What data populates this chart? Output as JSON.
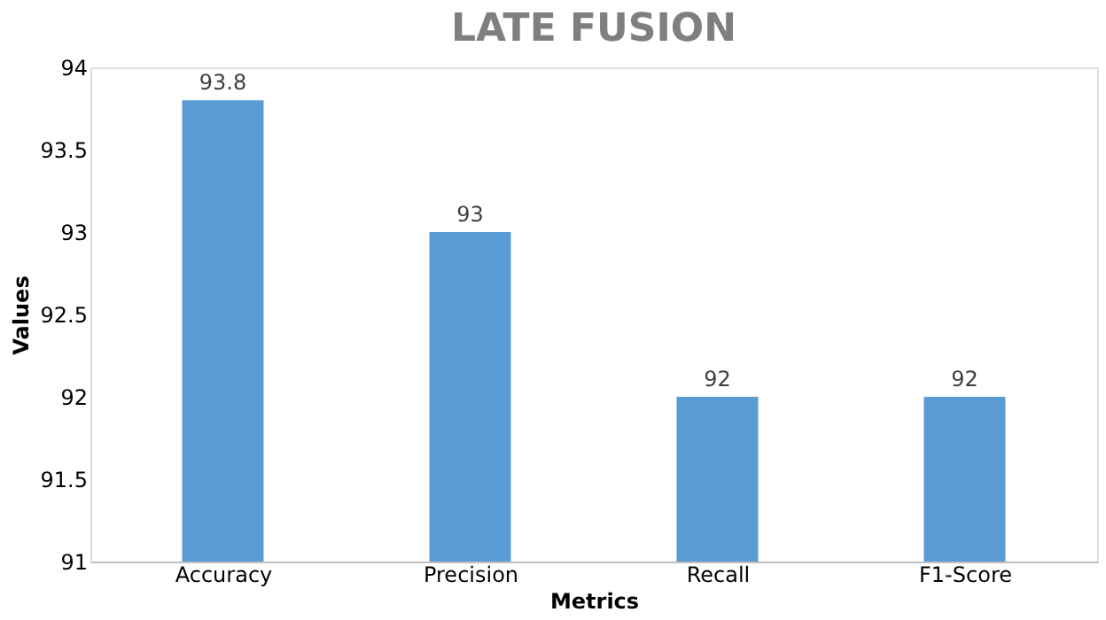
{
  "chart_data": {
    "type": "bar",
    "title": "LATE FUSION",
    "xlabel": "Metrics",
    "ylabel": "Values",
    "categories": [
      "Accuracy",
      "Precision",
      "Recall",
      "F1-Score"
    ],
    "values": [
      93.8,
      93,
      92,
      92
    ],
    "color": "#5b9bd5",
    "ylim": [
      91,
      94
    ],
    "yticks": [
      91,
      91.5,
      92,
      92.5,
      93,
      93.5,
      94
    ],
    "grid": false,
    "data_labels": true
  }
}
